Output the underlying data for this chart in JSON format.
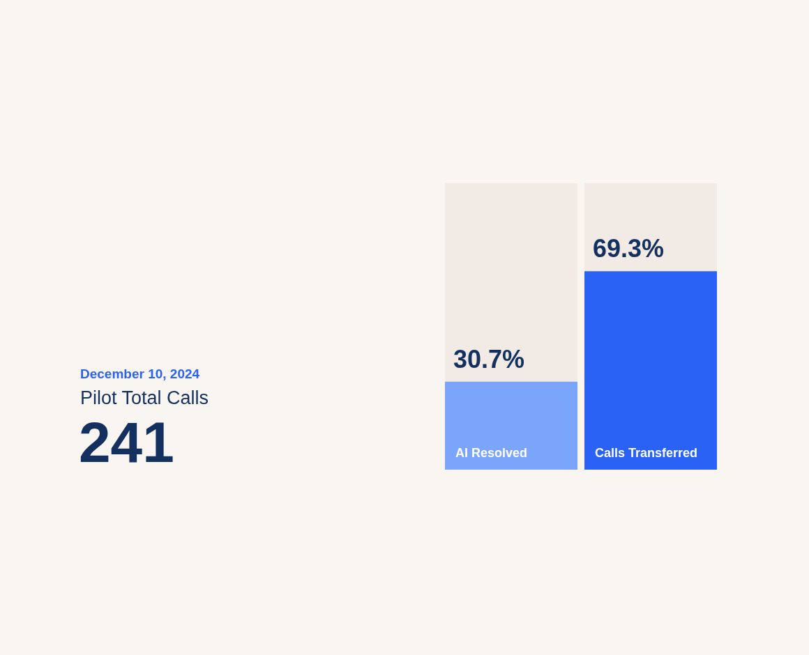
{
  "chart_data": {
    "type": "bar",
    "subtitle": "December 10, 2024",
    "title": "Pilot Total Calls",
    "annotations": [
      "241"
    ],
    "categories": [
      "AI Resolved",
      "Calls Transferred"
    ],
    "values": [
      30.7,
      69.3
    ],
    "colors": [
      "#7ba5fb",
      "#2a62f5"
    ],
    "value_labels": [
      "30.7%",
      "69.3%"
    ],
    "ylim": [
      0,
      100
    ]
  }
}
